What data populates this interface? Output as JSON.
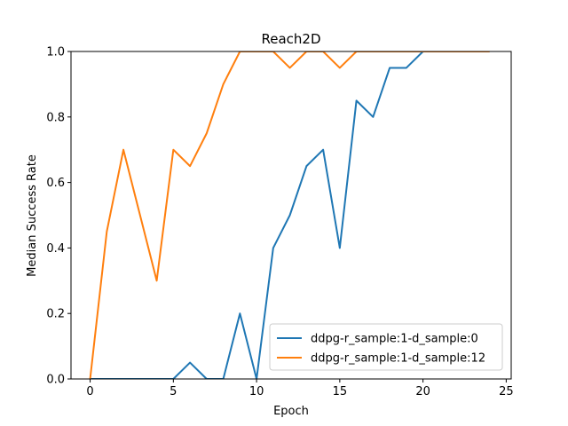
{
  "chart_data": {
    "type": "line",
    "title": "Reach2D",
    "xlabel": "Epoch",
    "ylabel": "Median Success Rate",
    "xlim": [
      -1.15,
      25.3
    ],
    "ylim": [
      0,
      1.0
    ],
    "xticks": [
      0,
      5,
      10,
      15,
      20,
      25
    ],
    "yticks": [
      0.0,
      0.2,
      0.4,
      0.6,
      0.8,
      1.0
    ],
    "ytick_labels": [
      "0.0",
      "0.2",
      "0.4",
      "0.6",
      "0.8",
      "1.0"
    ],
    "grid": false,
    "legend_position": "lower-right",
    "series": [
      {
        "name": "ddpg-r_sample:1-d_sample:0",
        "color": "#1f77b4",
        "x": [
          0,
          1,
          2,
          3,
          4,
          5,
          6,
          7,
          8,
          9,
          10,
          11,
          12,
          13,
          14,
          15,
          16,
          17,
          18,
          19,
          20,
          21,
          22,
          23,
          24
        ],
        "y": [
          0,
          0,
          0,
          0,
          0,
          0,
          0.05,
          0,
          0,
          0.2,
          0,
          0.4,
          0.5,
          0.65,
          0.7,
          0.4,
          0.85,
          0.8,
          0.95,
          0.95,
          1.0,
          1.0,
          1.0,
          1.0,
          1.0
        ]
      },
      {
        "name": "ddpg-r_sample:1-d_sample:12",
        "color": "#ff7f0e",
        "x": [
          0,
          1,
          2,
          3,
          4,
          5,
          6,
          7,
          8,
          9,
          10,
          11,
          12,
          13,
          14,
          15,
          16,
          17,
          18,
          19,
          20,
          21,
          22,
          23,
          24
        ],
        "y": [
          0,
          0.45,
          0.7,
          0.5,
          0.3,
          0.7,
          0.65,
          0.75,
          0.9,
          1.0,
          1.0,
          1.0,
          0.95,
          1.0,
          1.0,
          0.95,
          1.0,
          1.0,
          1.0,
          1.0,
          1.0,
          1.0,
          1.0,
          1.0,
          1.0
        ]
      }
    ]
  }
}
